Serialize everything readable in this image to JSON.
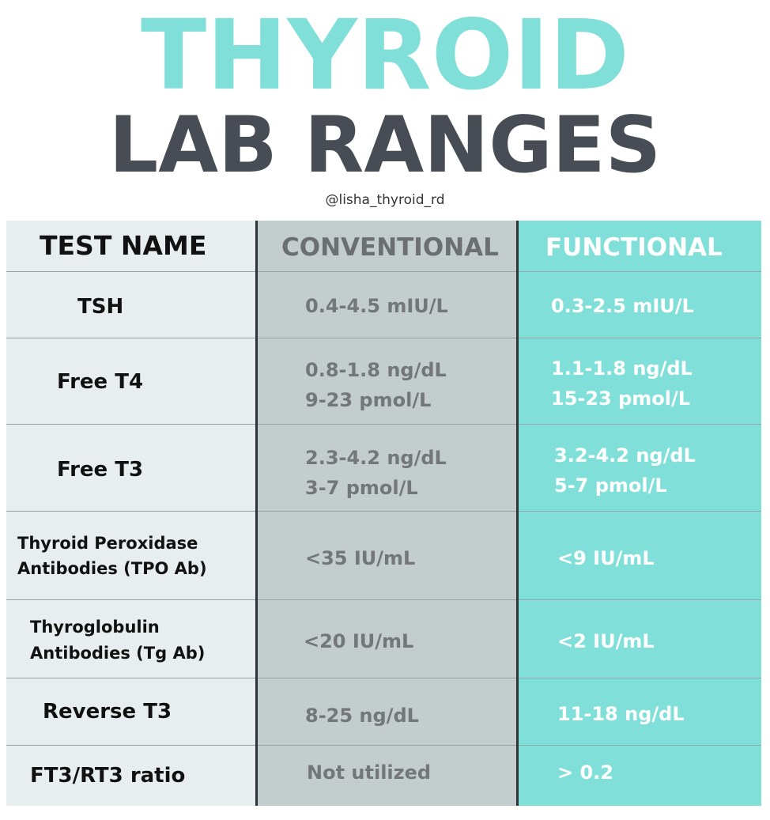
{
  "title": {
    "line1": "THYROID",
    "line2": "LAB RANGES",
    "handle": "@lisha_thyroid_rd"
  },
  "colors": {
    "accent": "#80e0d9",
    "dark": "#474c55",
    "test_bg": "#e8eeef",
    "conventional_bg": "#c3cdcd",
    "functional_bg": "#80e0d9"
  },
  "table": {
    "headers": {
      "test": "TEST NAME",
      "conventional": "CONVENTIONAL",
      "functional": "FUNCTIONAL"
    },
    "rows": [
      {
        "test": [
          "TSH"
        ],
        "conventional": [
          "0.4-4.5 mIU/L"
        ],
        "functional": [
          "0.3-2.5 mIU/L"
        ]
      },
      {
        "test": [
          "Free T4"
        ],
        "conventional": [
          "0.8-1.8 ng/dL",
          "9-23 pmol/L"
        ],
        "functional": [
          "1.1-1.8 ng/dL",
          "15-23 pmol/L"
        ]
      },
      {
        "test": [
          "Free T3"
        ],
        "conventional": [
          "2.3-4.2 ng/dL",
          "3-7 pmol/L"
        ],
        "functional": [
          "3.2-4.2 ng/dL",
          "5-7 pmol/L"
        ]
      },
      {
        "test": [
          "Thyroid Peroxidase",
          "Antibodies (TPO Ab)"
        ],
        "conventional": [
          "<35 IU/mL"
        ],
        "functional": [
          "<9 IU/mL"
        ]
      },
      {
        "test": [
          "Thyroglobulin",
          "Antibodies (Tg Ab)"
        ],
        "conventional": [
          "<20 IU/mL"
        ],
        "functional": [
          "<2 IU/mL"
        ]
      },
      {
        "test": [
          "Reverse T3"
        ],
        "conventional": [
          "8-25 ng/dL"
        ],
        "functional": [
          "11-18 ng/dL"
        ]
      },
      {
        "test": [
          "FT3/RT3 ratio"
        ],
        "conventional": [
          "Not utilized"
        ],
        "functional": [
          "> 0.2"
        ]
      }
    ]
  }
}
